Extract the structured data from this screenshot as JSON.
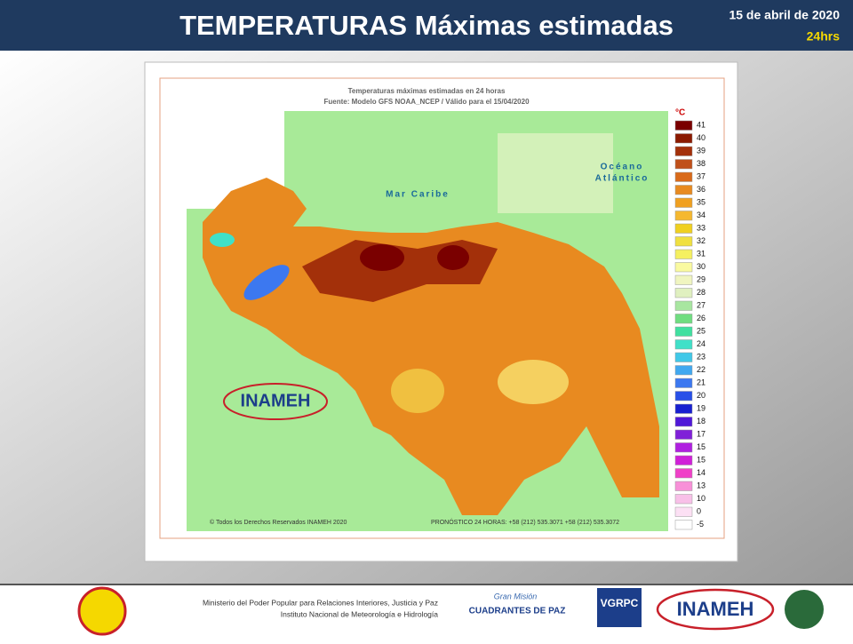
{
  "header": {
    "title": "TEMPERATURAS Máximas estimadas",
    "date": "15 de abril de 2020",
    "period": "24hrs"
  },
  "map": {
    "title": "Temperaturas máximas estimadas en 24 horas",
    "subtitle": "Fuente: Modelo GFS NOAA_NCEP / Válido para el 15/04/2020",
    "sea_label": "Mar Caribe",
    "ocean_label_1": "Océano",
    "ocean_label_2": "Atlántico",
    "logo": "INAMEH",
    "copyright": "© Todos los Derechos Reservados INAMEH 2020",
    "forecast": "PRONÓSTICO 24 HORAS: +58 (212) 535.3071 +58 (212) 535.3072"
  },
  "legend": {
    "unit": "°C",
    "items": [
      {
        "label": 41,
        "color": "#7a0000"
      },
      {
        "label": 40,
        "color": "#8b1a00"
      },
      {
        "label": 39,
        "color": "#a3300a"
      },
      {
        "label": 38,
        "color": "#c0501a"
      },
      {
        "label": 37,
        "color": "#d96a1a"
      },
      {
        "label": 36,
        "color": "#e88a20"
      },
      {
        "label": 35,
        "color": "#f0a020"
      },
      {
        "label": 34,
        "color": "#f5b830"
      },
      {
        "label": 33,
        "color": "#f0d020"
      },
      {
        "label": 32,
        "color": "#f0e040"
      },
      {
        "label": 31,
        "color": "#f5f060"
      },
      {
        "label": 30,
        "color": "#fafaa0"
      },
      {
        "label": 29,
        "color": "#f0f5c0"
      },
      {
        "label": 28,
        "color": "#e0f0c0"
      },
      {
        "label": 27,
        "color": "#a8e6a0"
      },
      {
        "label": 26,
        "color": "#70dd80"
      },
      {
        "label": 25,
        "color": "#40e0a0"
      },
      {
        "label": 24,
        "color": "#40e0c8"
      },
      {
        "label": 23,
        "color": "#40c8e8"
      },
      {
        "label": 22,
        "color": "#40a8f0"
      },
      {
        "label": 21,
        "color": "#3c78f0"
      },
      {
        "label": 20,
        "color": "#2850e8"
      },
      {
        "label": 19,
        "color": "#1820d0"
      },
      {
        "label": 18,
        "color": "#5018d8"
      },
      {
        "label": 17,
        "color": "#8020d8"
      },
      {
        "label": 15,
        "color": "#b020e0"
      },
      {
        "label": 15,
        "color": "#d020d8"
      },
      {
        "label": 14,
        "color": "#f040c8"
      },
      {
        "label": 13,
        "color": "#f890d8"
      },
      {
        "label": 10,
        "color": "#f8c0e8"
      },
      {
        "label": 0,
        "color": "#fce0f4"
      },
      {
        "label": -5,
        "color": "#ffffff"
      }
    ]
  },
  "footer": {
    "ministry": "Ministerio del Poder Popular para Relaciones Interiores, Justicia y Paz",
    "institute": "Instituto Nacional de Meteorología e Hidrología",
    "mision_1": "Gran Misión",
    "mision_2": "CUADRANTES DE PAZ",
    "vgrpc": "VGRPC",
    "inameh": "INAMEH"
  }
}
